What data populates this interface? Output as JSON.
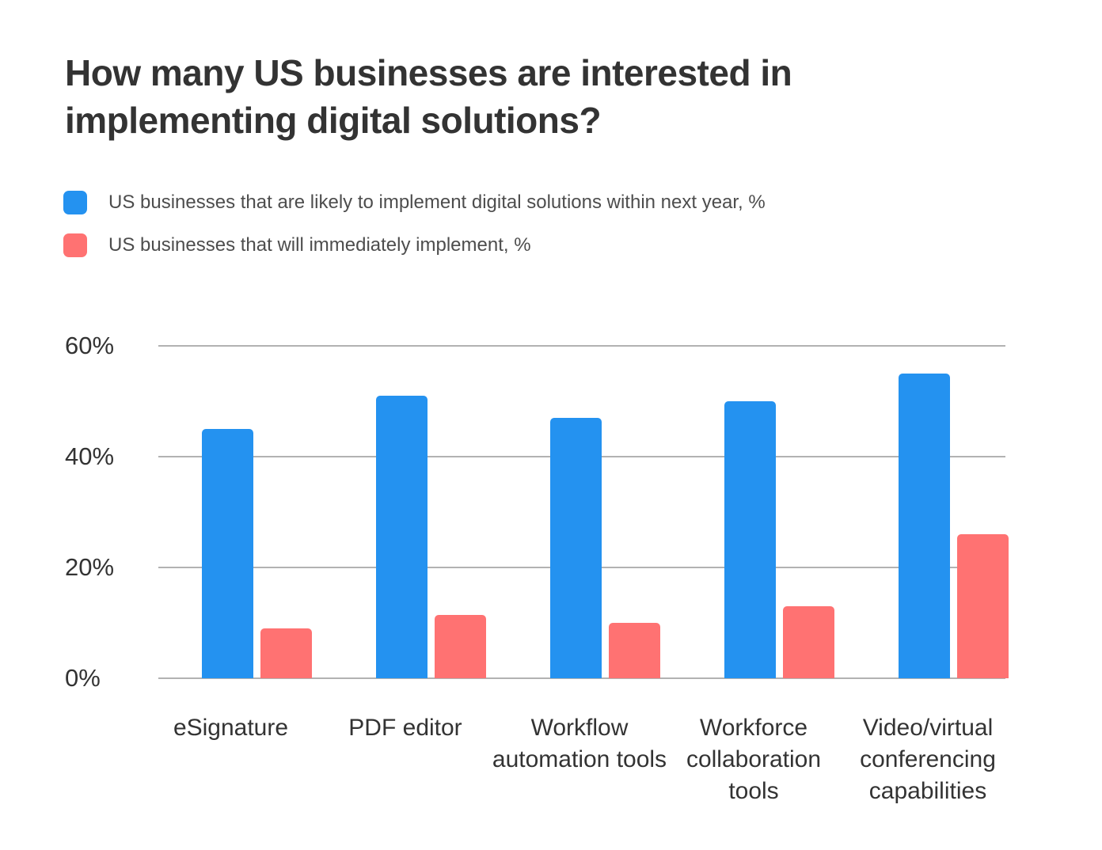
{
  "title": {
    "text": "How many US businesses are interested in implementing digital solutions?",
    "lines": [
      "How many US businesses are interested in",
      "implementing digital solutions?"
    ]
  },
  "legend": {
    "items": [
      {
        "label": "US businesses that are likely to implement digital solutions within next year, %",
        "color": "#2492F0"
      },
      {
        "label": "US businesses that will immediately implement, %",
        "color": "#FF7272"
      }
    ]
  },
  "chart_data": {
    "type": "bar",
    "title": "How many US businesses are interested in implementing digital solutions?",
    "categories": [
      "eSignature",
      "PDF editor",
      "Workflow automation tools",
      "Workforce collaboration tools",
      "Video/virtual conferencing capabilities"
    ],
    "series": [
      {
        "name": "US businesses that are likely to implement digital solutions within next year, %",
        "color": "#2492F0",
        "values": [
          45,
          51,
          47,
          50,
          55
        ]
      },
      {
        "name": "US businesses that will immediately implement, %",
        "color": "#FF7272",
        "values": [
          9,
          11.5,
          10,
          13,
          26
        ]
      }
    ],
    "xlabel": "",
    "ylabel": "",
    "ylim": [
      0,
      60
    ],
    "y_ticks": [
      {
        "value": 60,
        "label": "60%"
      },
      {
        "value": 40,
        "label": "40%"
      },
      {
        "value": 20,
        "label": "20%"
      },
      {
        "value": 0,
        "label": "0%"
      }
    ],
    "grid": true,
    "legend_position": "top-left",
    "colors": {
      "grid": "#b2b2b2",
      "axis_text": "#333333",
      "title_text": "#333333",
      "legend_text": "#4d4d4d"
    }
  }
}
